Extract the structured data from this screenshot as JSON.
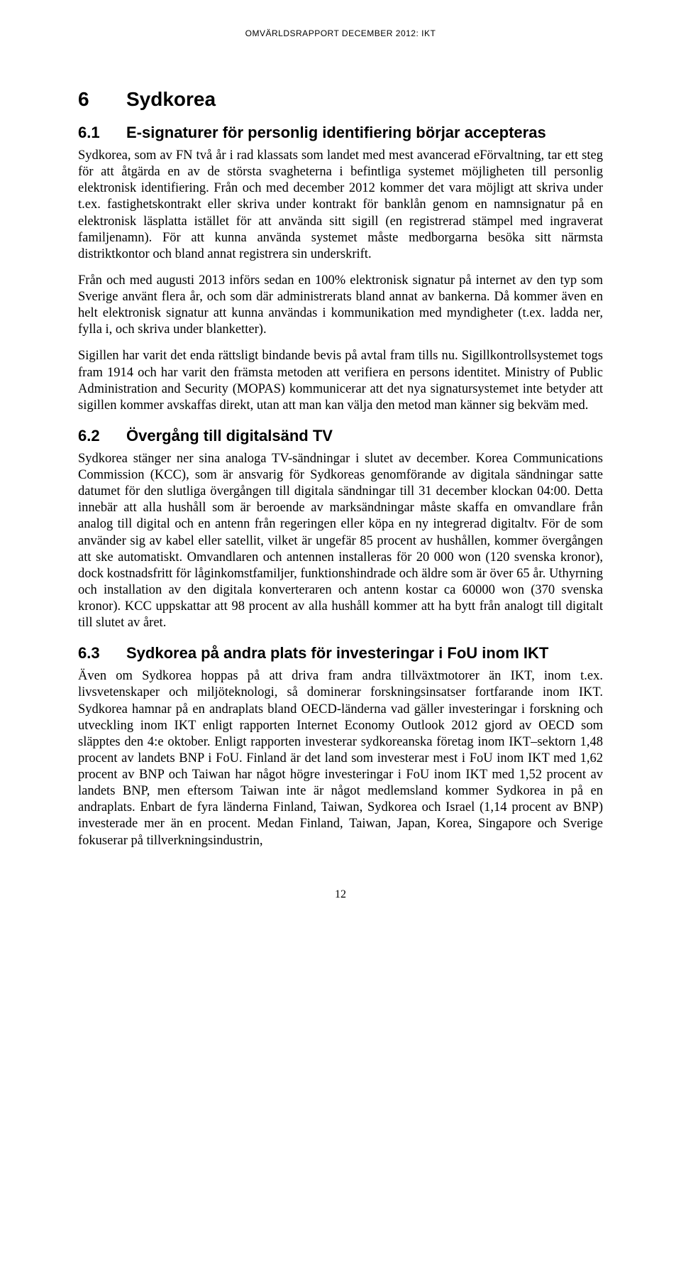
{
  "header": "OMVÄRLDSRAPPORT DECEMBER 2012: IKT",
  "sections": {
    "s6": {
      "number": "6",
      "title": "Sydkorea"
    },
    "s6_1": {
      "number": "6.1",
      "title": "E-signaturer för personlig identifiering börjar accepteras",
      "p1": "Sydkorea, som av FN två år i rad klassats som landet med mest avancerad eFörvaltning, tar ett steg för att åtgärda en av de största svagheterna i befintliga systemet möjligheten till personlig elektronisk identifiering. Från och med december 2012 kommer det vara möjligt att skriva under t.ex. fastighetskontrakt eller skriva under kontrakt för banklån genom en namnsignatur på en elektronisk läsplatta istället för att använda sitt sigill (en registrerad stämpel med ingraverat familjenamn). För att kunna använda systemet måste medborgarna besöka sitt närmsta distriktkontor och bland annat registrera sin underskrift.",
      "p2": "Från och med augusti 2013 införs sedan en 100% elektronisk signatur på internet av den typ som Sverige använt flera år, och som där administrerats bland annat av bankerna. Då kommer även en helt elektronisk signatur att kunna användas i kommunikation med myndigheter (t.ex. ladda ner, fylla i, och skriva under blanketter).",
      "p3": "Sigillen har varit det enda rättsligt bindande bevis på avtal fram tills nu. Sigillkontrollsystemet togs fram 1914 och har varit den främsta metoden att verifiera en persons identitet. Ministry of Public Administration and Security (MOPAS) kommunicerar att det nya signatursystemet inte betyder att sigillen kommer avskaffas direkt, utan att man kan välja den metod man känner sig bekväm med."
    },
    "s6_2": {
      "number": "6.2",
      "title": "Övergång till digitalsänd TV",
      "p1": "Sydkorea stänger ner sina analoga TV-sändningar i slutet av december. Korea Communications Commission (KCC), som är ansvarig för Sydkoreas genomförande av digitala sändningar satte datumet för den slutliga övergången till digitala sändningar till 31 december klockan 04:00. Detta innebär att alla hushåll som är beroende av marksändningar måste skaffa en omvandlare från analog till digital och en antenn från regeringen eller köpa en ny integrerad digitaltv. För de som använder sig av kabel eller satellit, vilket är ungefär 85 procent av hushållen, kommer övergången att ske automatiskt. Omvandlaren och antennen installeras för 20 000 won (120 svenska kronor), dock kostnadsfritt för låginkomstfamiljer, funktionshindrade och äldre som är över 65 år. Uthyrning och installation av den digitala konverteraren och antenn kostar ca 60000 won (370 svenska kronor). KCC uppskattar att 98 procent av alla hushåll kommer att ha bytt från analogt till digitalt till slutet av året."
    },
    "s6_3": {
      "number": "6.3",
      "title": "Sydkorea på andra plats för investeringar i FoU inom IKT",
      "p1": "Även om Sydkorea hoppas på att driva fram andra tillväxtmotorer än IKT, inom t.ex. livsvetenskaper och miljöteknologi, så dominerar forskningsinsatser fortfarande inom IKT. Sydkorea hamnar på en andraplats bland OECD-länderna vad gäller investeringar i forskning och utveckling inom IKT enligt rapporten Internet Economy Outlook 2012 gjord av OECD som släpptes den 4:e oktober. Enligt rapporten investerar sydkoreanska företag inom IKT–sektorn 1,48 procent av landets BNP i FoU. Finland är det land som investerar mest i FoU inom IKT med 1,62 procent av BNP och Taiwan har något högre investeringar i FoU inom IKT med 1,52 procent av landets BNP, men eftersom Taiwan inte är något medlemsland kommer Sydkorea in på en andraplats. Enbart de fyra länderna Finland, Taiwan, Sydkorea och Israel (1,14 procent av BNP) investerade mer än en procent. Medan Finland, Taiwan, Japan, Korea, Singapore och Sverige fokuserar på tillverkningsindustrin,"
    }
  },
  "page_number": "12"
}
